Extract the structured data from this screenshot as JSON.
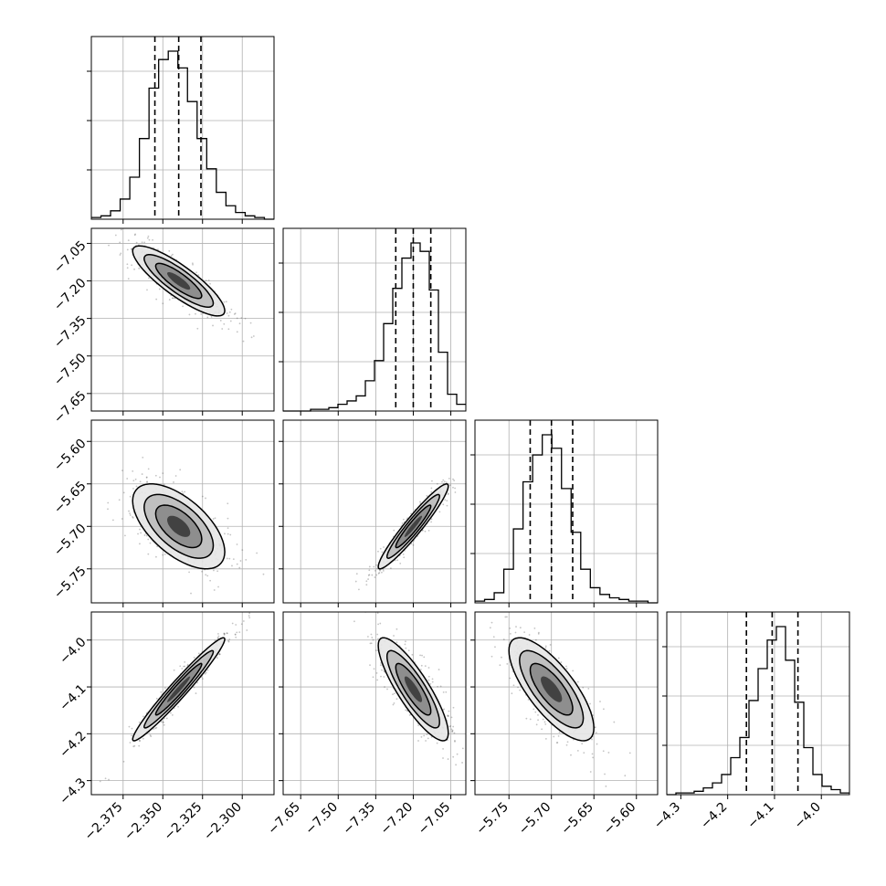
{
  "chart_data": {
    "type": "corner",
    "parameters": [
      {
        "id": "p0",
        "range": [
          -2.395,
          -2.28
        ],
        "ticks": [
          -2.375,
          -2.35,
          -2.325,
          -2.3
        ],
        "tick_labels": [
          "−2.375",
          "−2.350",
          "−2.325",
          "−2.300"
        ],
        "quantiles": [
          -2.355,
          -2.34,
          -2.326
        ]
      },
      {
        "id": "p1",
        "range": [
          -7.72,
          -6.99
        ],
        "ticks": [
          -7.65,
          -7.5,
          -7.35,
          -7.2,
          -7.05
        ],
        "tick_labels": [
          "−7.65",
          "−7.50",
          "−7.35",
          "−7.20",
          "−7.05"
        ],
        "quantiles": [
          -7.27,
          -7.2,
          -7.13
        ]
      },
      {
        "id": "p2",
        "range": [
          -5.79,
          -5.575
        ],
        "ticks": [
          -5.75,
          -5.7,
          -5.65,
          -5.6
        ],
        "tick_labels": [
          "−5.75",
          "−5.70",
          "−5.65",
          "−5.60"
        ],
        "quantiles": [
          -5.725,
          -5.7,
          -5.675
        ]
      },
      {
        "id": "p3",
        "range": [
          -4.33,
          -3.94
        ],
        "ticks": [
          -4.3,
          -4.2,
          -4.1,
          -4.0
        ],
        "tick_labels": [
          "−4.3",
          "−4.2",
          "−4.1",
          "−4.0"
        ],
        "quantiles": [
          -4.16,
          -4.105,
          -4.05
        ]
      }
    ],
    "histograms": [
      {
        "param": "p0",
        "counts": [
          1,
          2,
          5,
          12,
          25,
          48,
          78,
          95,
          100,
          90,
          70,
          48,
          30,
          16,
          8,
          4,
          2,
          1,
          0
        ]
      },
      {
        "param": "p1",
        "counts": [
          0,
          0,
          0,
          1,
          1,
          2,
          4,
          6,
          9,
          18,
          30,
          52,
          73,
          91,
          100,
          95,
          72,
          35,
          10,
          4
        ]
      },
      {
        "param": "p2",
        "counts": [
          1,
          2,
          6,
          20,
          44,
          72,
          88,
          100,
          92,
          68,
          42,
          20,
          9,
          5,
          3,
          2,
          1,
          1,
          0
        ]
      },
      {
        "param": "p3",
        "counts": [
          0,
          1,
          1,
          2,
          4,
          7,
          12,
          22,
          34,
          56,
          75,
          92,
          100,
          80,
          55,
          28,
          12,
          5,
          3,
          1
        ]
      }
    ],
    "pairs": [
      {
        "x": "p0",
        "y": "p1",
        "rho": -0.85
      },
      {
        "x": "p0",
        "y": "p2",
        "rho": -0.6
      },
      {
        "x": "p1",
        "y": "p2",
        "rho": 0.95
      },
      {
        "x": "p0",
        "y": "p3",
        "rho": 0.97
      },
      {
        "x": "p1",
        "y": "p3",
        "rho": -0.85
      },
      {
        "x": "p2",
        "y": "p3",
        "rho": -0.75
      }
    ],
    "grid": true,
    "colors": {
      "line": "#000000",
      "grid": "#b0b0b0",
      "points": "#555555",
      "fill_levels": [
        "#e6e6e6",
        "#bbbbbb",
        "#888888",
        "#3a3a3a"
      ]
    }
  }
}
